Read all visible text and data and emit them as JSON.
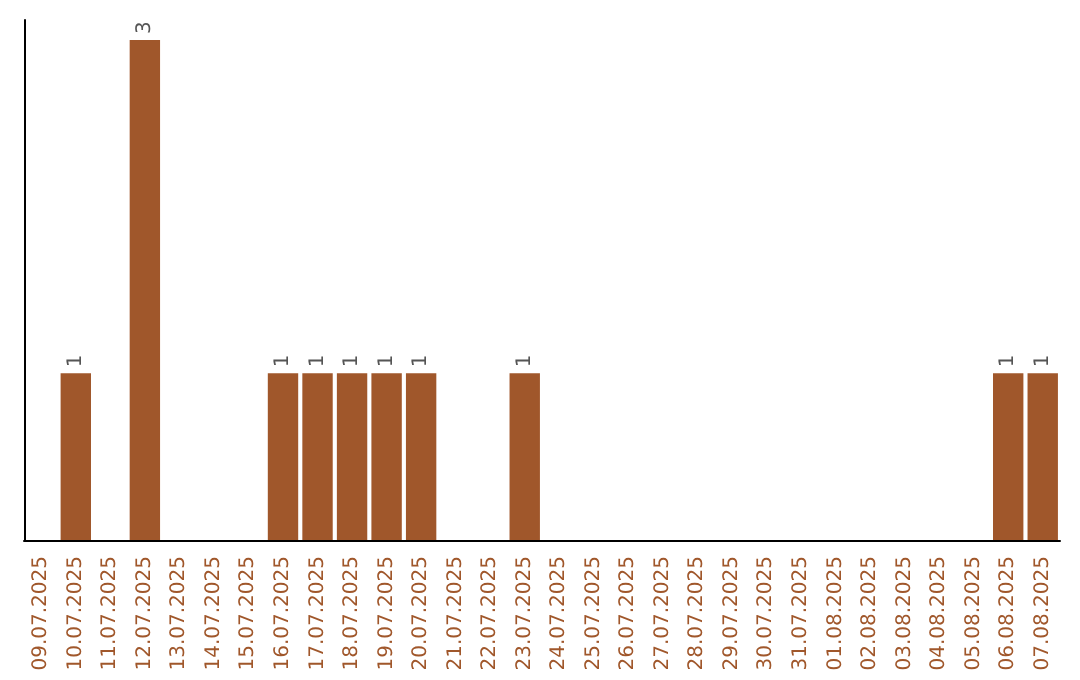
{
  "chart_data": {
    "type": "bar",
    "categories": [
      "09.07.2025",
      "10.07.2025",
      "11.07.2025",
      "12.07.2025",
      "13.07.2025",
      "14.07.2025",
      "15.07.2025",
      "16.07.2025",
      "17.07.2025",
      "18.07.2025",
      "19.07.2025",
      "20.07.2025",
      "21.07.2025",
      "22.07.2025",
      "23.07.2025",
      "24.07.2025",
      "25.07.2025",
      "26.07.2025",
      "27.07.2025",
      "28.07.2025",
      "29.07.2025",
      "30.07.2025",
      "31.07.2025",
      "01.08.2025",
      "02.08.2025",
      "03.08.2025",
      "04.08.2025",
      "05.08.2025",
      "06.08.2025",
      "07.08.2025"
    ],
    "values": [
      0,
      1,
      0,
      3,
      0,
      0,
      0,
      1,
      1,
      1,
      1,
      1,
      0,
      0,
      1,
      0,
      0,
      0,
      0,
      0,
      0,
      0,
      0,
      0,
      0,
      0,
      0,
      0,
      1,
      1
    ],
    "value_labels": [
      null,
      "1",
      null,
      "3",
      null,
      null,
      null,
      "1",
      "1",
      "1",
      "1",
      "1",
      null,
      null,
      "1",
      null,
      null,
      null,
      null,
      null,
      null,
      null,
      null,
      null,
      null,
      null,
      null,
      null,
      "1",
      "1"
    ],
    "color": "#a0572b"
  }
}
